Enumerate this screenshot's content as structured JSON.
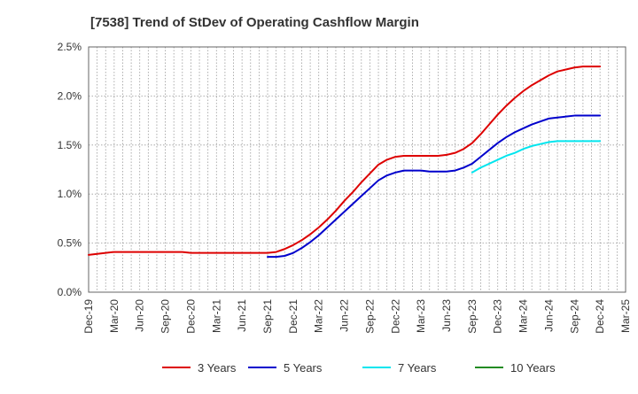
{
  "chart_data": {
    "type": "line",
    "title": "[7538]  Trend of StDev of Operating Cashflow Margin",
    "xlabel": "",
    "ylabel": "",
    "ylim": [
      0,
      2.5
    ],
    "y_ticks": [
      0,
      0.5,
      1.0,
      1.5,
      2.0,
      2.5
    ],
    "y_tick_labels": [
      "0.0%",
      "0.5%",
      "1.0%",
      "1.5%",
      "2.0%",
      "2.5%"
    ],
    "x_ticks": [
      "Dec-19",
      "Mar-20",
      "Jun-20",
      "Sep-20",
      "Dec-20",
      "Mar-21",
      "Jun-21",
      "Sep-21",
      "Dec-21",
      "Mar-22",
      "Jun-22",
      "Sep-22",
      "Dec-22",
      "Mar-23",
      "Jun-23",
      "Sep-23",
      "Dec-23",
      "Mar-24",
      "Jun-24",
      "Sep-24",
      "Dec-24",
      "Mar-25"
    ],
    "x_range_months": [
      "2019-12",
      "2025-03"
    ],
    "grid": true,
    "legend_position": "bottom",
    "series": [
      {
        "name": "3 Years",
        "color": "#dd0000",
        "points": [
          [
            "2019-12",
            0.38
          ],
          [
            "2020-01",
            0.39
          ],
          [
            "2020-02",
            0.4
          ],
          [
            "2020-03",
            0.41
          ],
          [
            "2020-04",
            0.41
          ],
          [
            "2020-05",
            0.41
          ],
          [
            "2020-06",
            0.41
          ],
          [
            "2020-07",
            0.41
          ],
          [
            "2020-08",
            0.41
          ],
          [
            "2020-09",
            0.41
          ],
          [
            "2020-10",
            0.41
          ],
          [
            "2020-11",
            0.41
          ],
          [
            "2020-12",
            0.4
          ],
          [
            "2021-01",
            0.4
          ],
          [
            "2021-02",
            0.4
          ],
          [
            "2021-03",
            0.4
          ],
          [
            "2021-04",
            0.4
          ],
          [
            "2021-05",
            0.4
          ],
          [
            "2021-06",
            0.4
          ],
          [
            "2021-07",
            0.4
          ],
          [
            "2021-08",
            0.4
          ],
          [
            "2021-09",
            0.4
          ],
          [
            "2021-10",
            0.41
          ],
          [
            "2021-11",
            0.44
          ],
          [
            "2021-12",
            0.48
          ],
          [
            "2022-01",
            0.53
          ],
          [
            "2022-02",
            0.59
          ],
          [
            "2022-03",
            0.66
          ],
          [
            "2022-04",
            0.74
          ],
          [
            "2022-05",
            0.83
          ],
          [
            "2022-06",
            0.93
          ],
          [
            "2022-07",
            1.02
          ],
          [
            "2022-08",
            1.12
          ],
          [
            "2022-09",
            1.21
          ],
          [
            "2022-10",
            1.3
          ],
          [
            "2022-11",
            1.35
          ],
          [
            "2022-12",
            1.38
          ],
          [
            "2023-01",
            1.39
          ],
          [
            "2023-02",
            1.39
          ],
          [
            "2023-03",
            1.39
          ],
          [
            "2023-04",
            1.39
          ],
          [
            "2023-05",
            1.39
          ],
          [
            "2023-06",
            1.4
          ],
          [
            "2023-07",
            1.42
          ],
          [
            "2023-08",
            1.46
          ],
          [
            "2023-09",
            1.52
          ],
          [
            "2023-10",
            1.61
          ],
          [
            "2023-11",
            1.71
          ],
          [
            "2023-12",
            1.81
          ],
          [
            "2024-01",
            1.9
          ],
          [
            "2024-02",
            1.98
          ],
          [
            "2024-03",
            2.05
          ],
          [
            "2024-04",
            2.11
          ],
          [
            "2024-05",
            2.16
          ],
          [
            "2024-06",
            2.21
          ],
          [
            "2024-07",
            2.25
          ],
          [
            "2024-08",
            2.27
          ],
          [
            "2024-09",
            2.29
          ],
          [
            "2024-10",
            2.3
          ],
          [
            "2024-11",
            2.3
          ],
          [
            "2024-12",
            2.3
          ]
        ]
      },
      {
        "name": "5 Years",
        "color": "#0000cc",
        "points": [
          [
            "2021-09",
            0.36
          ],
          [
            "2021-10",
            0.36
          ],
          [
            "2021-11",
            0.37
          ],
          [
            "2021-12",
            0.4
          ],
          [
            "2022-01",
            0.45
          ],
          [
            "2022-02",
            0.51
          ],
          [
            "2022-03",
            0.58
          ],
          [
            "2022-04",
            0.66
          ],
          [
            "2022-05",
            0.74
          ],
          [
            "2022-06",
            0.82
          ],
          [
            "2022-07",
            0.9
          ],
          [
            "2022-08",
            0.98
          ],
          [
            "2022-09",
            1.06
          ],
          [
            "2022-10",
            1.14
          ],
          [
            "2022-11",
            1.19
          ],
          [
            "2022-12",
            1.22
          ],
          [
            "2023-01",
            1.24
          ],
          [
            "2023-02",
            1.24
          ],
          [
            "2023-03",
            1.24
          ],
          [
            "2023-04",
            1.23
          ],
          [
            "2023-05",
            1.23
          ],
          [
            "2023-06",
            1.23
          ],
          [
            "2023-07",
            1.24
          ],
          [
            "2023-08",
            1.27
          ],
          [
            "2023-09",
            1.31
          ],
          [
            "2023-10",
            1.38
          ],
          [
            "2023-11",
            1.45
          ],
          [
            "2023-12",
            1.52
          ],
          [
            "2024-01",
            1.58
          ],
          [
            "2024-02",
            1.63
          ],
          [
            "2024-03",
            1.67
          ],
          [
            "2024-04",
            1.71
          ],
          [
            "2024-05",
            1.74
          ],
          [
            "2024-06",
            1.77
          ],
          [
            "2024-07",
            1.78
          ],
          [
            "2024-08",
            1.79
          ],
          [
            "2024-09",
            1.8
          ],
          [
            "2024-10",
            1.8
          ],
          [
            "2024-11",
            1.8
          ],
          [
            "2024-12",
            1.8
          ]
        ]
      },
      {
        "name": "7 Years",
        "color": "#00e5ee",
        "points": [
          [
            "2023-09",
            1.22
          ],
          [
            "2023-10",
            1.27
          ],
          [
            "2023-11",
            1.31
          ],
          [
            "2023-12",
            1.35
          ],
          [
            "2024-01",
            1.39
          ],
          [
            "2024-02",
            1.42
          ],
          [
            "2024-03",
            1.46
          ],
          [
            "2024-04",
            1.49
          ],
          [
            "2024-05",
            1.51
          ],
          [
            "2024-06",
            1.53
          ],
          [
            "2024-07",
            1.54
          ],
          [
            "2024-08",
            1.54
          ],
          [
            "2024-09",
            1.54
          ],
          [
            "2024-10",
            1.54
          ],
          [
            "2024-11",
            1.54
          ],
          [
            "2024-12",
            1.54
          ]
        ]
      },
      {
        "name": "10 Years",
        "color": "#228b22",
        "points": []
      }
    ]
  }
}
